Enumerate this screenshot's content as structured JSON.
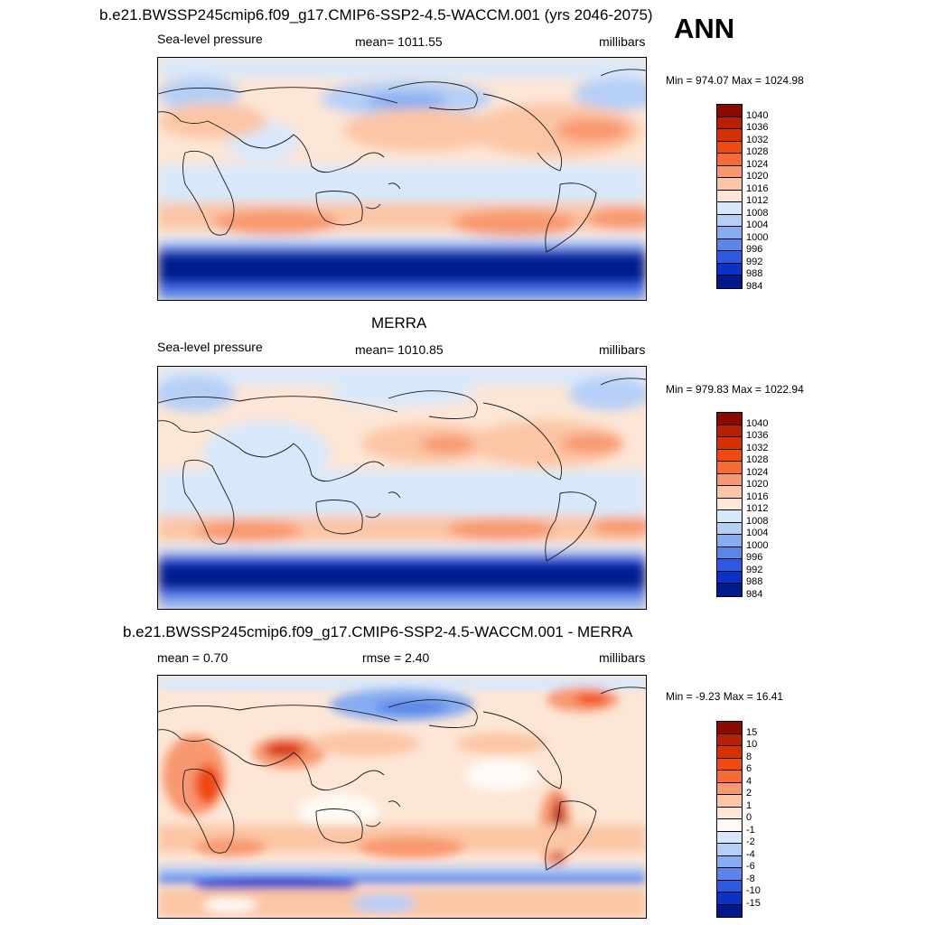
{
  "header": {
    "title": "b.e21.BWSSP245cmip6.f09_g17.CMIP6-SSP2-4.5-WACCM.001 (yrs 2046-2075)",
    "season": "ANN"
  },
  "panels": [
    {
      "id": "model",
      "left_label": "Sea-level pressure",
      "center_label": "mean= 1011.55",
      "right_label": "millibars",
      "minmax": "Min = 974.07 Max = 1024.98",
      "colorbar_levels": [
        "1040",
        "1036",
        "1032",
        "1028",
        "1024",
        "1020",
        "1016",
        "1012",
        "1008",
        "1004",
        "1000",
        "996",
        "992",
        "988",
        "984"
      ],
      "colorbar_colors": [
        "#8b0a00",
        "#b81e00",
        "#d73000",
        "#f04a10",
        "#f56a35",
        "#f89870",
        "#fbc6a6",
        "#fde6d6",
        "#d8e8fb",
        "#b5cff7",
        "#87acf0",
        "#5a86ea",
        "#2d59e0",
        "#0a32c7",
        "#001a8c"
      ]
    },
    {
      "id": "obs",
      "title": "MERRA",
      "left_label": "Sea-level pressure",
      "center_label": "mean= 1010.85",
      "right_label": "millibars",
      "minmax": "Min = 979.83 Max = 1022.94",
      "colorbar_levels": [
        "1040",
        "1036",
        "1032",
        "1028",
        "1024",
        "1020",
        "1016",
        "1012",
        "1008",
        "1004",
        "1000",
        "996",
        "992",
        "988",
        "984"
      ],
      "colorbar_colors": [
        "#8b0a00",
        "#b81e00",
        "#d73000",
        "#f04a10",
        "#f56a35",
        "#f89870",
        "#fbc6a6",
        "#fde6d6",
        "#d8e8fb",
        "#b5cff7",
        "#87acf0",
        "#5a86ea",
        "#2d59e0",
        "#0a32c7",
        "#001a8c"
      ]
    },
    {
      "id": "diff",
      "title": "b.e21.BWSSP245cmip6.f09_g17.CMIP6-SSP2-4.5-WACCM.001 - MERRA",
      "left_label": "mean =   0.70",
      "center_label": "rmse =   2.40",
      "right_label": "millibars",
      "minmax": "Min =  -9.23 Max =  16.41",
      "colorbar_levels": [
        "15",
        "10",
        "8",
        "6",
        "4",
        "2",
        "1",
        "0",
        "-1",
        "-2",
        "-4",
        "-6",
        "-8",
        "-10",
        "-15"
      ],
      "colorbar_colors": [
        "#8b0a00",
        "#b81e00",
        "#d73000",
        "#f04a10",
        "#f56a35",
        "#f89870",
        "#fbc6a6",
        "#fde6d6",
        "#fffaf5",
        "#d8e8fb",
        "#b5cff7",
        "#87acf0",
        "#5a86ea",
        "#2d59e0",
        "#0a32c7",
        "#001a8c"
      ]
    }
  ],
  "colors": {
    "frame": "#000000",
    "coast": "#1a1a1a"
  }
}
